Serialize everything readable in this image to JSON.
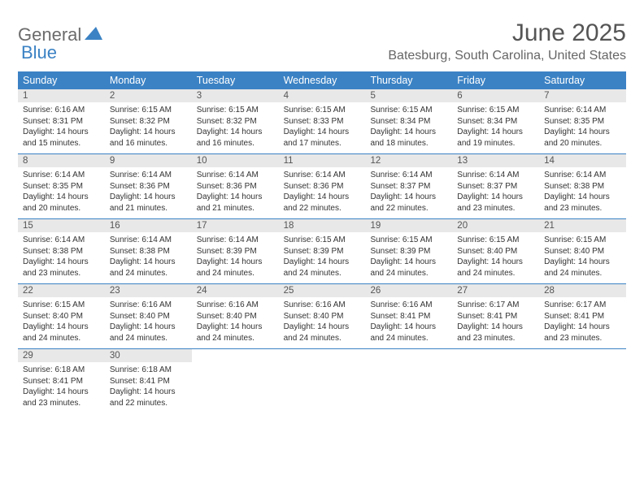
{
  "logo": {
    "text1": "General",
    "text2": "Blue"
  },
  "title": "June 2025",
  "location": "Batesburg, South Carolina, United States",
  "colors": {
    "header_bg": "#3b82c4",
    "daynum_bg": "#e8e8e8",
    "text": "#333333",
    "title_text": "#555555",
    "location_text": "#666666",
    "divider": "#3b82c4"
  },
  "day_names": [
    "Sunday",
    "Monday",
    "Tuesday",
    "Wednesday",
    "Thursday",
    "Friday",
    "Saturday"
  ],
  "days": [
    {
      "n": 1,
      "sr": "6:16 AM",
      "ss": "8:31 PM",
      "dl": "14 hours and 15 minutes."
    },
    {
      "n": 2,
      "sr": "6:15 AM",
      "ss": "8:32 PM",
      "dl": "14 hours and 16 minutes."
    },
    {
      "n": 3,
      "sr": "6:15 AM",
      "ss": "8:32 PM",
      "dl": "14 hours and 16 minutes."
    },
    {
      "n": 4,
      "sr": "6:15 AM",
      "ss": "8:33 PM",
      "dl": "14 hours and 17 minutes."
    },
    {
      "n": 5,
      "sr": "6:15 AM",
      "ss": "8:34 PM",
      "dl": "14 hours and 18 minutes."
    },
    {
      "n": 6,
      "sr": "6:15 AM",
      "ss": "8:34 PM",
      "dl": "14 hours and 19 minutes."
    },
    {
      "n": 7,
      "sr": "6:14 AM",
      "ss": "8:35 PM",
      "dl": "14 hours and 20 minutes."
    },
    {
      "n": 8,
      "sr": "6:14 AM",
      "ss": "8:35 PM",
      "dl": "14 hours and 20 minutes."
    },
    {
      "n": 9,
      "sr": "6:14 AM",
      "ss": "8:36 PM",
      "dl": "14 hours and 21 minutes."
    },
    {
      "n": 10,
      "sr": "6:14 AM",
      "ss": "8:36 PM",
      "dl": "14 hours and 21 minutes."
    },
    {
      "n": 11,
      "sr": "6:14 AM",
      "ss": "8:36 PM",
      "dl": "14 hours and 22 minutes."
    },
    {
      "n": 12,
      "sr": "6:14 AM",
      "ss": "8:37 PM",
      "dl": "14 hours and 22 minutes."
    },
    {
      "n": 13,
      "sr": "6:14 AM",
      "ss": "8:37 PM",
      "dl": "14 hours and 23 minutes."
    },
    {
      "n": 14,
      "sr": "6:14 AM",
      "ss": "8:38 PM",
      "dl": "14 hours and 23 minutes."
    },
    {
      "n": 15,
      "sr": "6:14 AM",
      "ss": "8:38 PM",
      "dl": "14 hours and 23 minutes."
    },
    {
      "n": 16,
      "sr": "6:14 AM",
      "ss": "8:38 PM",
      "dl": "14 hours and 24 minutes."
    },
    {
      "n": 17,
      "sr": "6:14 AM",
      "ss": "8:39 PM",
      "dl": "14 hours and 24 minutes."
    },
    {
      "n": 18,
      "sr": "6:15 AM",
      "ss": "8:39 PM",
      "dl": "14 hours and 24 minutes."
    },
    {
      "n": 19,
      "sr": "6:15 AM",
      "ss": "8:39 PM",
      "dl": "14 hours and 24 minutes."
    },
    {
      "n": 20,
      "sr": "6:15 AM",
      "ss": "8:40 PM",
      "dl": "14 hours and 24 minutes."
    },
    {
      "n": 21,
      "sr": "6:15 AM",
      "ss": "8:40 PM",
      "dl": "14 hours and 24 minutes."
    },
    {
      "n": 22,
      "sr": "6:15 AM",
      "ss": "8:40 PM",
      "dl": "14 hours and 24 minutes."
    },
    {
      "n": 23,
      "sr": "6:16 AM",
      "ss": "8:40 PM",
      "dl": "14 hours and 24 minutes."
    },
    {
      "n": 24,
      "sr": "6:16 AM",
      "ss": "8:40 PM",
      "dl": "14 hours and 24 minutes."
    },
    {
      "n": 25,
      "sr": "6:16 AM",
      "ss": "8:40 PM",
      "dl": "14 hours and 24 minutes."
    },
    {
      "n": 26,
      "sr": "6:16 AM",
      "ss": "8:41 PM",
      "dl": "14 hours and 24 minutes."
    },
    {
      "n": 27,
      "sr": "6:17 AM",
      "ss": "8:41 PM",
      "dl": "14 hours and 23 minutes."
    },
    {
      "n": 28,
      "sr": "6:17 AM",
      "ss": "8:41 PM",
      "dl": "14 hours and 23 minutes."
    },
    {
      "n": 29,
      "sr": "6:18 AM",
      "ss": "8:41 PM",
      "dl": "14 hours and 23 minutes."
    },
    {
      "n": 30,
      "sr": "6:18 AM",
      "ss": "8:41 PM",
      "dl": "14 hours and 22 minutes."
    }
  ],
  "labels": {
    "sunrise": "Sunrise:",
    "sunset": "Sunset:",
    "daylight": "Daylight:"
  },
  "layout": {
    "first_weekday": 0,
    "weeks": 5,
    "cols": 7
  }
}
